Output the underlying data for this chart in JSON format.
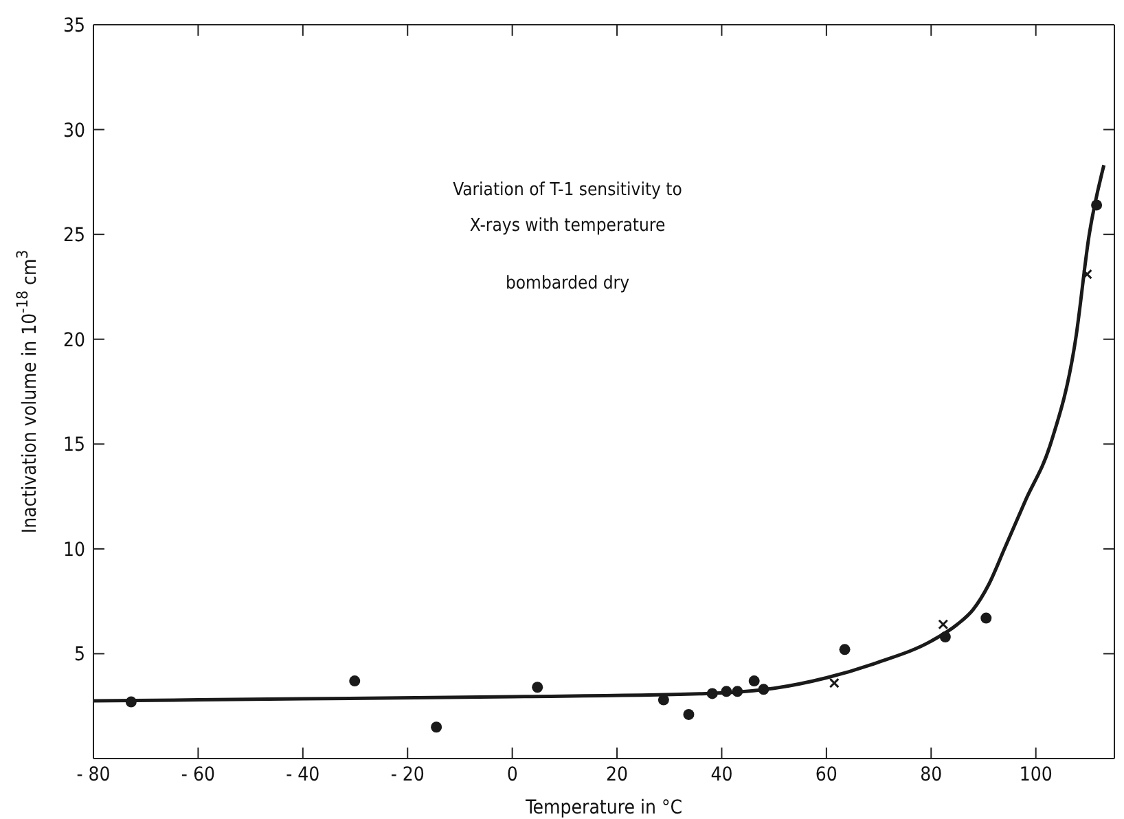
{
  "chart_data": {
    "type": "scatter",
    "title": "Variation of T-1 sensitivity to X-rays with temperature",
    "subtitle": "bombarded dry",
    "xlabel": "Temperature in °C",
    "ylabel": "Inactivation volume in 10$^{-18}$ cm$^{3}$",
    "xlim": [
      -80,
      115
    ],
    "xticks": [
      {
        "value": -80,
        "label": "- 80"
      },
      {
        "value": -60,
        "label": "- 60"
      },
      {
        "value": -40,
        "label": "- 40"
      },
      {
        "value": -20,
        "label": "- 20"
      },
      0,
      20,
      40,
      60,
      80,
      100
    ],
    "ylim": [
      0,
      35
    ],
    "yticks": [
      5,
      10,
      15,
      20,
      25,
      30,
      35
    ],
    "grid": false,
    "series": [
      {
        "type": "scatter",
        "marker": "circle",
        "color": "#1a1a1a",
        "x": [
          -72.8,
          -30.1,
          -14.5,
          4.8,
          28.9,
          33.7,
          38.2,
          40.9,
          43,
          46.2,
          48,
          63.5,
          82.7,
          90.5,
          111.6
        ],
        "values": [
          2.7,
          3.7,
          1.5,
          3.4,
          2.8,
          2.1,
          3.1,
          3.2,
          3.2,
          3.7,
          3.3,
          5.2,
          5.8,
          6.7,
          26.4
        ]
      },
      {
        "type": "scatter",
        "marker": "cross",
        "color": "#1a1a1a",
        "x": [
          61.5,
          82.3,
          109.8
        ],
        "values": [
          3.6,
          6.4,
          23.1
        ]
      },
      {
        "type": "line",
        "marker": "none",
        "line_style": "solid",
        "color": "#1a1a1a",
        "x": [
          -80,
          -40,
          0,
          37,
          50,
          60,
          70,
          80,
          85,
          88,
          91,
          94,
          98,
          102.8,
          107.6,
          110.2,
          113
        ],
        "values": [
          2.75,
          2.85,
          2.95,
          3.1,
          3.35,
          3.85,
          4.6,
          5.6,
          6.4,
          7.1,
          8.3,
          10,
          12.3,
          15,
          20,
          25,
          28.3
        ]
      }
    ]
  }
}
